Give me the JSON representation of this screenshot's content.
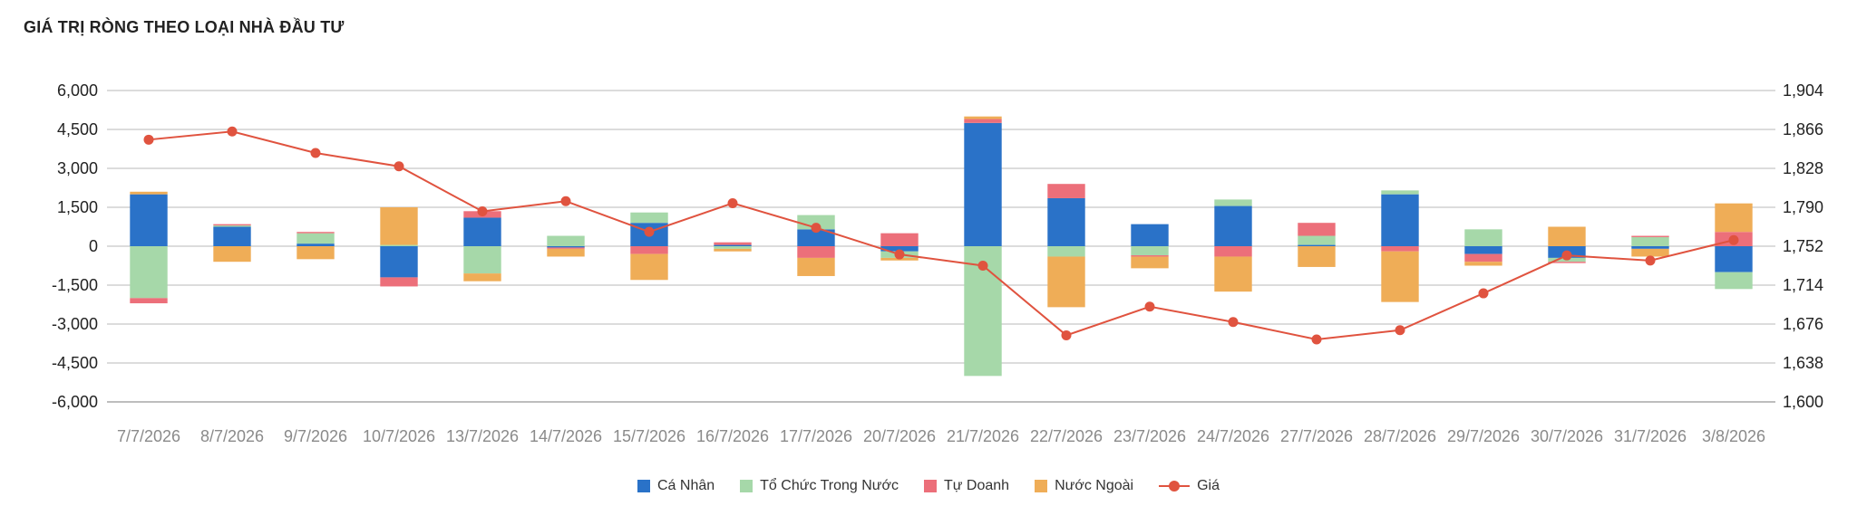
{
  "title": "GIÁ TRỊ RÒNG THEO LOẠI NHÀ ĐẦU TƯ",
  "chart_data": {
    "type": "bar",
    "stacked": true,
    "categories": [
      "7/7/2026",
      "8/7/2026",
      "9/7/2026",
      "10/7/2026",
      "13/7/2026",
      "14/7/2026",
      "15/7/2026",
      "16/7/2026",
      "17/7/2026",
      "20/7/2026",
      "21/7/2026",
      "22/7/2026",
      "23/7/2026",
      "24/7/2026",
      "27/7/2026",
      "28/7/2026",
      "29/7/2026",
      "30/7/2026",
      "31/7/2026",
      "3/8/2026"
    ],
    "series": [
      {
        "name": "Cá Nhân",
        "color": "#2a72c8",
        "values": [
          2000,
          750,
          100,
          -1200,
          1100,
          -50,
          900,
          50,
          650,
          -200,
          4750,
          1850,
          850,
          1550,
          50,
          2000,
          -300,
          -450,
          -100,
          -1000
        ]
      },
      {
        "name": "Tổ Chức Trong Nước",
        "color": "#a6d8a9",
        "values": [
          -2000,
          50,
          400,
          50,
          -1050,
          400,
          400,
          -100,
          550,
          -250,
          -5000,
          -400,
          -350,
          250,
          350,
          150,
          650,
          -150,
          350,
          -650
        ]
      },
      {
        "name": "Tự Doanh",
        "color": "#ec6f7a",
        "values": [
          -200,
          50,
          50,
          -350,
          250,
          -50,
          -300,
          100,
          -450,
          500,
          150,
          550,
          -50,
          -400,
          500,
          -200,
          -300,
          -50,
          50,
          550
        ]
      },
      {
        "name": "Nước Ngoài",
        "color": "#efad57",
        "values": [
          100,
          -600,
          -500,
          1450,
          -300,
          -300,
          -1000,
          -100,
          -700,
          -100,
          100,
          -1950,
          -450,
          -1350,
          -800,
          -1950,
          -150,
          750,
          -300,
          1100
        ]
      }
    ],
    "line": {
      "name": "Giá",
      "color": "#e0533f",
      "values": [
        1856,
        1864,
        1843,
        1830,
        1786,
        1796,
        1766,
        1794,
        1770,
        1744,
        1733,
        1665,
        1693,
        1678,
        1661,
        1670,
        1706,
        1743,
        1738,
        1758
      ]
    },
    "y_left": {
      "min": -6000,
      "max": 6000,
      "ticks": [
        6000,
        4500,
        3000,
        1500,
        0,
        -1500,
        -3000,
        -4500,
        -6000
      ],
      "tick_labels": [
        "6,000",
        "4,500",
        "3,000",
        "1,500",
        "0",
        "-1,500",
        "-3,000",
        "-4,500",
        "-6,000"
      ]
    },
    "y_right": {
      "min": 1600,
      "max": 1904,
      "ticks": [
        1904,
        1866,
        1828,
        1790,
        1752,
        1714,
        1676,
        1638,
        1600
      ],
      "tick_labels": [
        "1,904",
        "1,866",
        "1,828",
        "1,790",
        "1,752",
        "1,714",
        "1,676",
        "1,638",
        "1,600"
      ]
    },
    "grid": true,
    "legend_position": "bottom"
  },
  "legend": [
    {
      "label": "Cá Nhân",
      "color": "#2a72c8",
      "kind": "box"
    },
    {
      "label": "Tổ Chức Trong Nước",
      "color": "#a6d8a9",
      "kind": "box"
    },
    {
      "label": "Tự Doanh",
      "color": "#ec6f7a",
      "kind": "box"
    },
    {
      "label": "Nước Ngoài",
      "color": "#efad57",
      "kind": "box"
    },
    {
      "label": "Giá",
      "color": "#e0533f",
      "kind": "line"
    }
  ]
}
